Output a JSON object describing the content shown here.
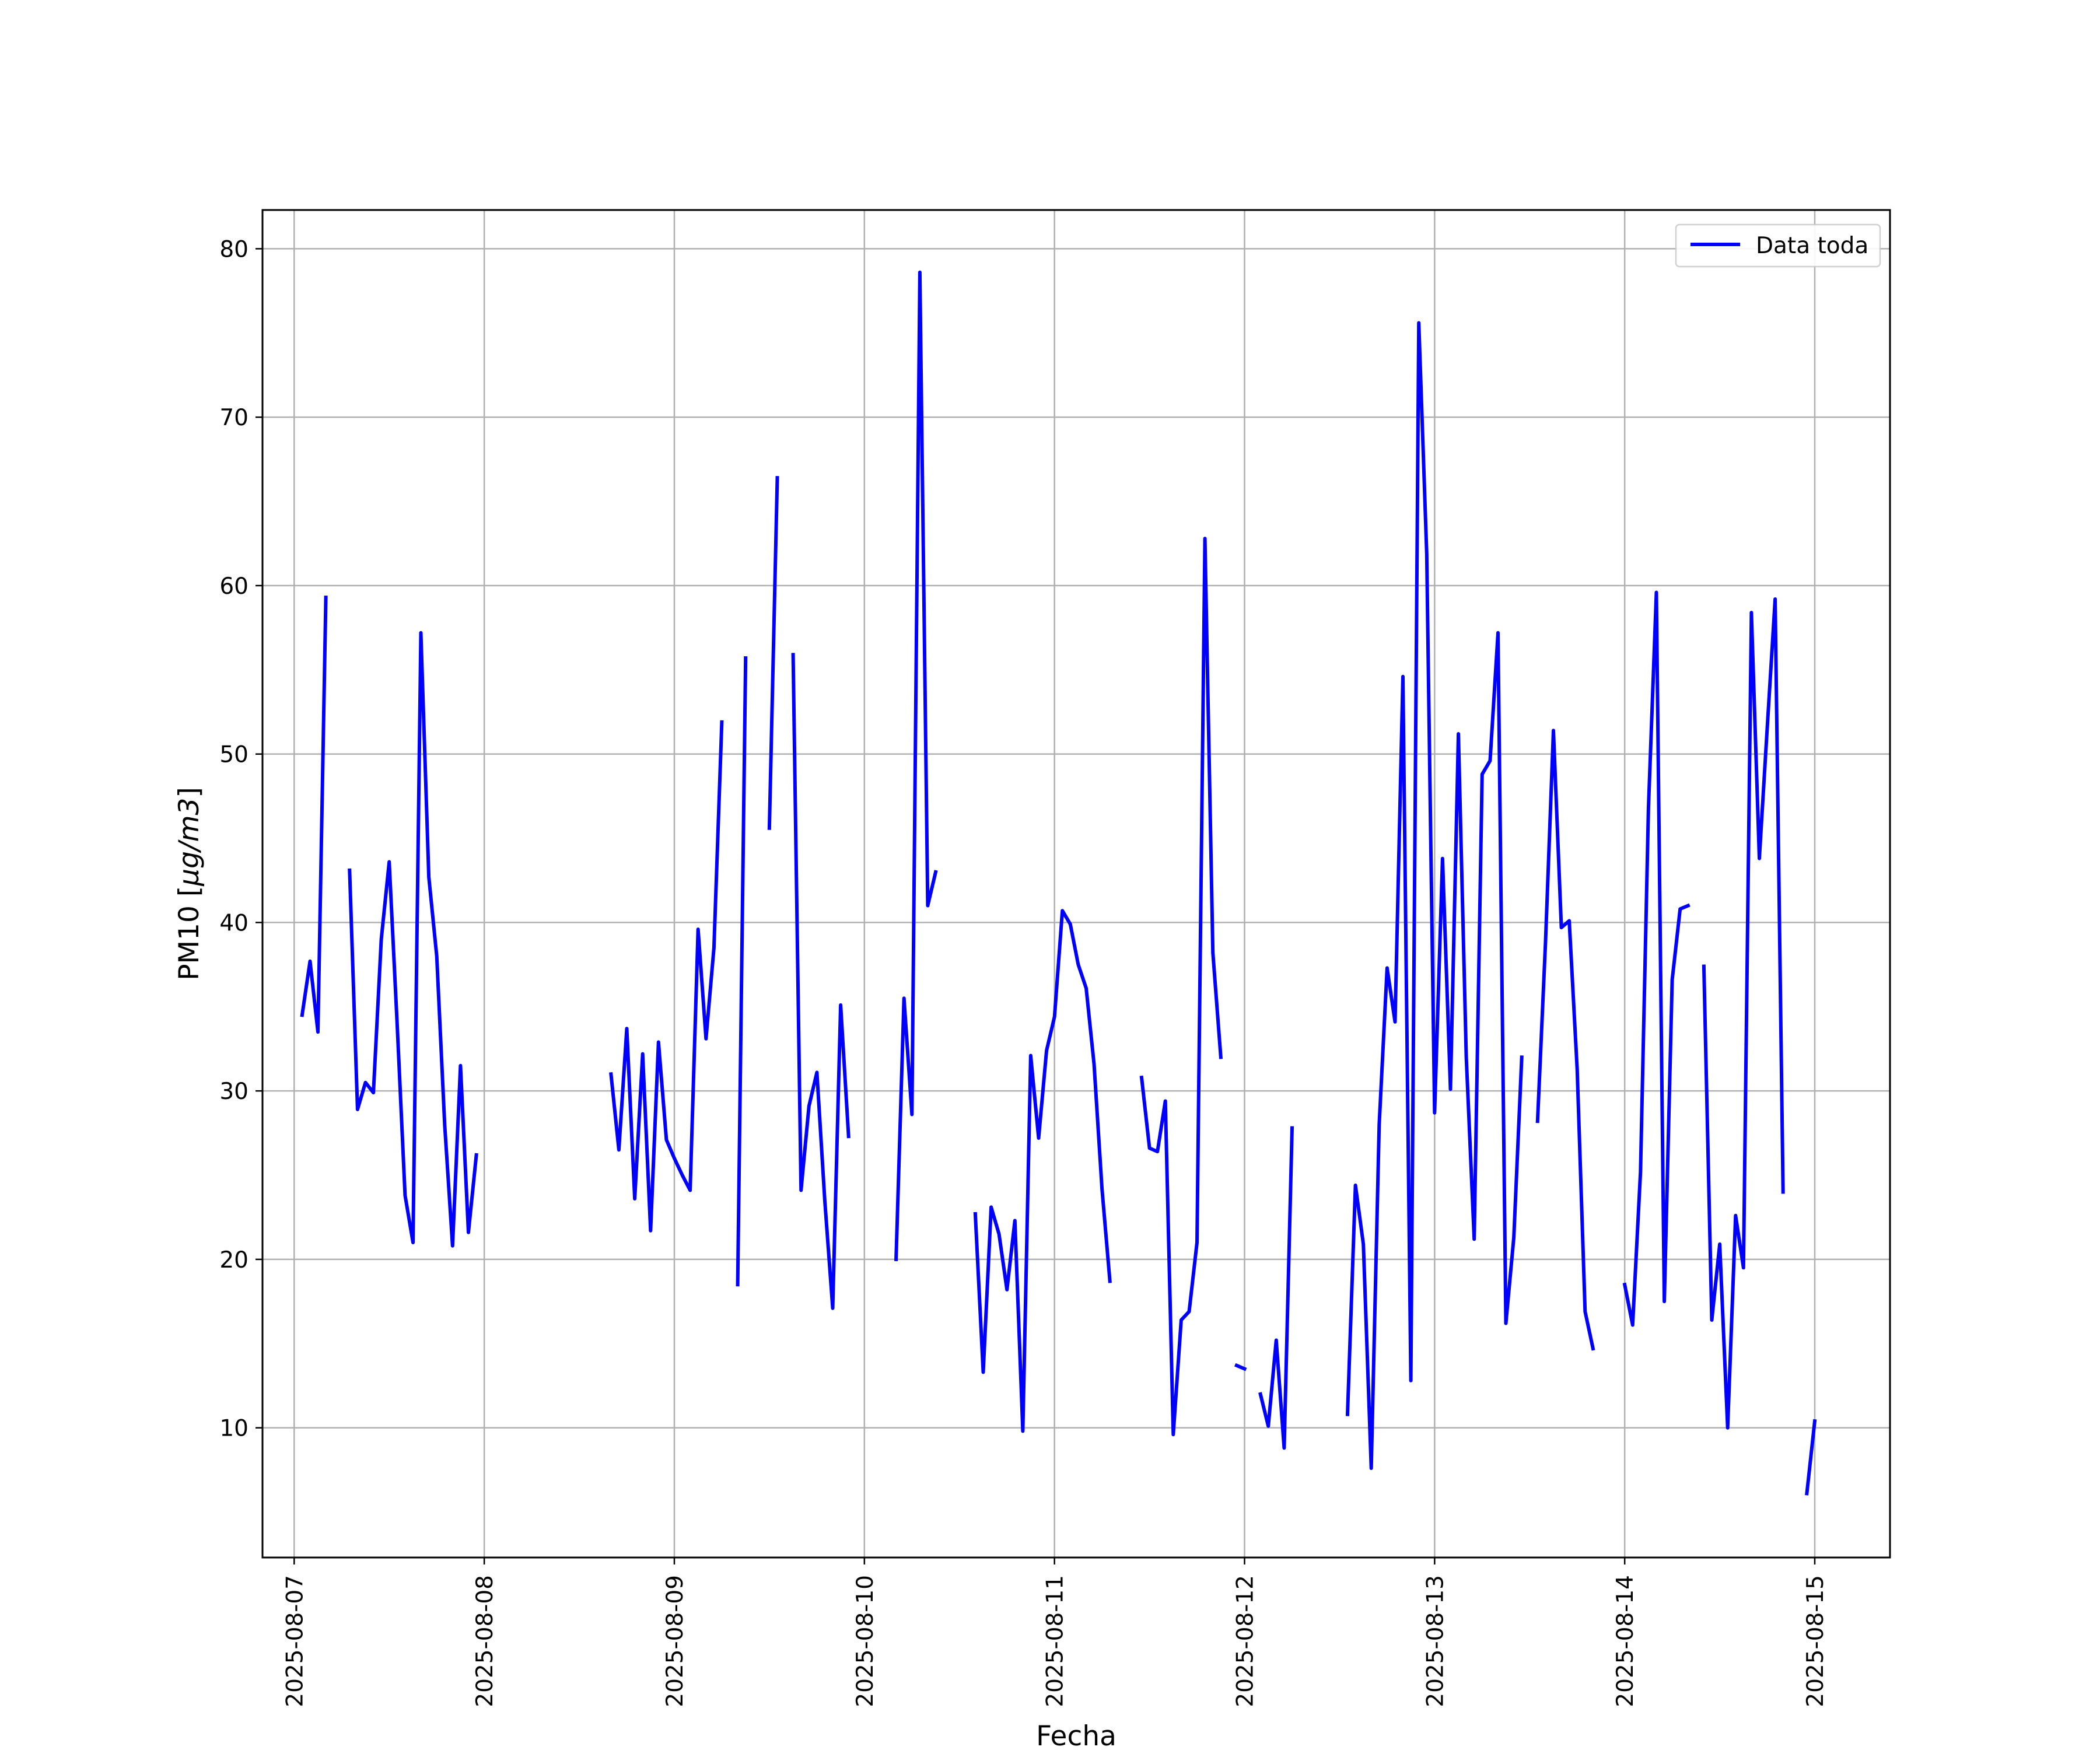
{
  "chart_data": {
    "type": "line",
    "xlabel": "Fecha",
    "ylabel_main": "PM10 [",
    "ylabel_math": "μg/m3",
    "ylabel_end": "]",
    "xlim": [
      "2025-08-06T20:00",
      "2025-08-15T09:30"
    ],
    "ylim": [
      2.3,
      82.3
    ],
    "grid": true,
    "legend_position": "top-right",
    "x_ticks": [
      {
        "value": "2025-08-07T00:00",
        "label": "2025-08-07"
      },
      {
        "value": "2025-08-08T00:00",
        "label": "2025-08-08"
      },
      {
        "value": "2025-08-09T00:00",
        "label": "2025-08-09"
      },
      {
        "value": "2025-08-10T00:00",
        "label": "2025-08-10"
      },
      {
        "value": "2025-08-11T00:00",
        "label": "2025-08-11"
      },
      {
        "value": "2025-08-12T00:00",
        "label": "2025-08-12"
      },
      {
        "value": "2025-08-13T00:00",
        "label": "2025-08-13"
      },
      {
        "value": "2025-08-14T00:00",
        "label": "2025-08-14"
      },
      {
        "value": "2025-08-15T00:00",
        "label": "2025-08-15"
      }
    ],
    "y_ticks": [
      {
        "value": 10,
        "label": "10"
      },
      {
        "value": 20,
        "label": "20"
      },
      {
        "value": 30,
        "label": "30"
      },
      {
        "value": 40,
        "label": "40"
      },
      {
        "value": 50,
        "label": "50"
      },
      {
        "value": 60,
        "label": "60"
      },
      {
        "value": 70,
        "label": "70"
      },
      {
        "value": 80,
        "label": "80"
      }
    ],
    "series": [
      {
        "name": "Data toda",
        "color": "#0000ff",
        "segments": [
          [
            [
              "2025-08-07T01:00",
              34.5
            ],
            [
              "2025-08-07T02:00",
              37.7
            ],
            [
              "2025-08-07T03:00",
              33.5
            ],
            [
              "2025-08-07T04:00",
              59.3
            ]
          ],
          [
            [
              "2025-08-07T07:00",
              43.1
            ],
            [
              "2025-08-07T08:00",
              28.9
            ],
            [
              "2025-08-07T09:00",
              30.5
            ],
            [
              "2025-08-07T10:00",
              29.9
            ],
            [
              "2025-08-07T11:00",
              39.0
            ],
            [
              "2025-08-07T12:00",
              43.6
            ],
            [
              "2025-08-07T13:00",
              34.0
            ],
            [
              "2025-08-07T14:00",
              23.8
            ],
            [
              "2025-08-07T15:00",
              21.0
            ],
            [
              "2025-08-07T16:00",
              57.2
            ],
            [
              "2025-08-07T17:00",
              42.7
            ],
            [
              "2025-08-07T18:00",
              38.0
            ],
            [
              "2025-08-07T19:00",
              28.0
            ],
            [
              "2025-08-07T20:00",
              20.8
            ],
            [
              "2025-08-07T21:00",
              31.5
            ],
            [
              "2025-08-07T22:00",
              21.6
            ],
            [
              "2025-08-07T23:00",
              26.2
            ]
          ],
          [
            [
              "2025-08-08T16:00",
              31.0
            ],
            [
              "2025-08-08T17:00",
              26.5
            ],
            [
              "2025-08-08T18:00",
              33.7
            ],
            [
              "2025-08-08T19:00",
              23.6
            ],
            [
              "2025-08-08T20:00",
              32.2
            ],
            [
              "2025-08-08T21:00",
              21.7
            ],
            [
              "2025-08-08T22:00",
              32.9
            ],
            [
              "2025-08-08T23:00",
              27.1
            ],
            [
              "2025-08-09T00:00",
              26.0
            ],
            [
              "2025-08-09T01:00",
              25.0
            ],
            [
              "2025-08-09T02:00",
              24.1
            ],
            [
              "2025-08-09T03:00",
              39.6
            ],
            [
              "2025-08-09T04:00",
              33.1
            ],
            [
              "2025-08-09T05:00",
              38.5
            ],
            [
              "2025-08-09T06:00",
              51.9
            ]
          ],
          [
            [
              "2025-08-09T08:00",
              18.5
            ],
            [
              "2025-08-09T09:00",
              55.7
            ]
          ],
          [
            [
              "2025-08-09T12:00",
              45.6
            ],
            [
              "2025-08-09T13:00",
              66.4
            ]
          ],
          [
            [
              "2025-08-09T15:00",
              55.9
            ],
            [
              "2025-08-09T16:00",
              24.1
            ],
            [
              "2025-08-09T17:00",
              29.1
            ],
            [
              "2025-08-09T18:00",
              31.1
            ],
            [
              "2025-08-09T19:00",
              23.5
            ],
            [
              "2025-08-09T20:00",
              17.1
            ],
            [
              "2025-08-09T21:00",
              35.1
            ],
            [
              "2025-08-09T22:00",
              27.3
            ]
          ],
          [
            [
              "2025-08-10T04:00",
              20.0
            ],
            [
              "2025-08-10T05:00",
              35.5
            ],
            [
              "2025-08-10T06:00",
              28.6
            ],
            [
              "2025-08-10T07:00",
              78.6
            ],
            [
              "2025-08-10T08:00",
              41.0
            ],
            [
              "2025-08-10T09:00",
              43.0
            ]
          ],
          [
            [
              "2025-08-10T14:00",
              22.7
            ],
            [
              "2025-08-10T15:00",
              13.3
            ],
            [
              "2025-08-10T16:00",
              23.1
            ],
            [
              "2025-08-10T17:00",
              21.5
            ],
            [
              "2025-08-10T18:00",
              18.2
            ],
            [
              "2025-08-10T19:00",
              22.3
            ],
            [
              "2025-08-10T20:00",
              9.8
            ],
            [
              "2025-08-10T21:00",
              32.1
            ],
            [
              "2025-08-10T22:00",
              27.2
            ],
            [
              "2025-08-10T23:00",
              32.4
            ],
            [
              "2025-08-11T00:00",
              34.4
            ],
            [
              "2025-08-11T01:00",
              40.7
            ],
            [
              "2025-08-11T02:00",
              39.9
            ],
            [
              "2025-08-11T03:00",
              37.5
            ],
            [
              "2025-08-11T04:00",
              36.1
            ],
            [
              "2025-08-11T05:00",
              31.6
            ],
            [
              "2025-08-11T06:00",
              24.2
            ],
            [
              "2025-08-11T07:00",
              18.7
            ]
          ],
          [
            [
              "2025-08-11T11:00",
              30.8
            ],
            [
              "2025-08-11T12:00",
              26.6
            ],
            [
              "2025-08-11T13:00",
              26.4
            ],
            [
              "2025-08-11T14:00",
              29.4
            ],
            [
              "2025-08-11T15:00",
              9.6
            ],
            [
              "2025-08-11T16:00",
              16.4
            ],
            [
              "2025-08-11T17:00",
              16.9
            ],
            [
              "2025-08-11T18:00",
              21.0
            ],
            [
              "2025-08-11T19:00",
              62.8
            ],
            [
              "2025-08-11T20:00",
              38.2
            ],
            [
              "2025-08-11T21:00",
              32.0
            ]
          ],
          [
            [
              "2025-08-11T23:00",
              13.7
            ],
            [
              "2025-08-12T00:00",
              13.5
            ]
          ],
          [
            [
              "2025-08-12T02:00",
              12.0
            ],
            [
              "2025-08-12T03:00",
              10.1
            ],
            [
              "2025-08-12T04:00",
              15.2
            ],
            [
              "2025-08-12T05:00",
              8.8
            ],
            [
              "2025-08-12T06:00",
              27.8
            ]
          ],
          [
            [
              "2025-08-12T13:00",
              10.8
            ],
            [
              "2025-08-12T14:00",
              24.4
            ],
            [
              "2025-08-12T15:00",
              20.9
            ],
            [
              "2025-08-12T16:00",
              7.6
            ],
            [
              "2025-08-12T17:00",
              28.0
            ],
            [
              "2025-08-12T18:00",
              37.3
            ],
            [
              "2025-08-12T19:00",
              34.1
            ],
            [
              "2025-08-12T20:00",
              54.6
            ],
            [
              "2025-08-12T21:00",
              12.8
            ],
            [
              "2025-08-12T22:00",
              75.6
            ],
            [
              "2025-08-12T23:00",
              61.9
            ],
            [
              "2025-08-13T00:00",
              28.7
            ],
            [
              "2025-08-13T01:00",
              43.8
            ],
            [
              "2025-08-13T02:00",
              30.1
            ],
            [
              "2025-08-13T03:00",
              51.2
            ],
            [
              "2025-08-13T04:00",
              32.0
            ],
            [
              "2025-08-13T05:00",
              21.2
            ],
            [
              "2025-08-13T06:00",
              48.8
            ],
            [
              "2025-08-13T07:00",
              49.6
            ],
            [
              "2025-08-13T08:00",
              57.2
            ],
            [
              "2025-08-13T09:00",
              16.2
            ],
            [
              "2025-08-13T10:00",
              21.3
            ],
            [
              "2025-08-13T11:00",
              32.0
            ]
          ],
          [
            [
              "2025-08-13T13:00",
              28.2
            ],
            [
              "2025-08-13T14:00",
              38.8
            ],
            [
              "2025-08-13T15:00",
              51.4
            ],
            [
              "2025-08-13T16:00",
              39.7
            ],
            [
              "2025-08-13T17:00",
              40.1
            ],
            [
              "2025-08-13T18:00",
              31.3
            ],
            [
              "2025-08-13T19:00",
              16.9
            ],
            [
              "2025-08-13T20:00",
              14.7
            ]
          ],
          [
            [
              "2025-08-14T00:00",
              18.5
            ],
            [
              "2025-08-14T01:00",
              16.1
            ],
            [
              "2025-08-14T02:00",
              25.2
            ],
            [
              "2025-08-14T03:00",
              46.8
            ],
            [
              "2025-08-14T04:00",
              59.6
            ],
            [
              "2025-08-14T05:00",
              17.5
            ],
            [
              "2025-08-14T06:00",
              36.6
            ],
            [
              "2025-08-14T07:00",
              40.8
            ],
            [
              "2025-08-14T08:00",
              41.0
            ]
          ],
          [
            [
              "2025-08-14T10:00",
              37.4
            ],
            [
              "2025-08-14T11:00",
              16.4
            ],
            [
              "2025-08-14T12:00",
              20.9
            ],
            [
              "2025-08-14T13:00",
              10.0
            ],
            [
              "2025-08-14T14:00",
              22.6
            ],
            [
              "2025-08-14T15:00",
              19.5
            ],
            [
              "2025-08-14T16:00",
              58.4
            ],
            [
              "2025-08-14T17:00",
              43.8
            ],
            [
              "2025-08-14T18:00",
              51.6
            ],
            [
              "2025-08-14T19:00",
              59.2
            ],
            [
              "2025-08-14T20:00",
              24.0
            ]
          ],
          [
            [
              "2025-08-14T23:00",
              6.1
            ],
            [
              "2025-08-15T00:00",
              10.4
            ]
          ]
        ]
      }
    ]
  }
}
